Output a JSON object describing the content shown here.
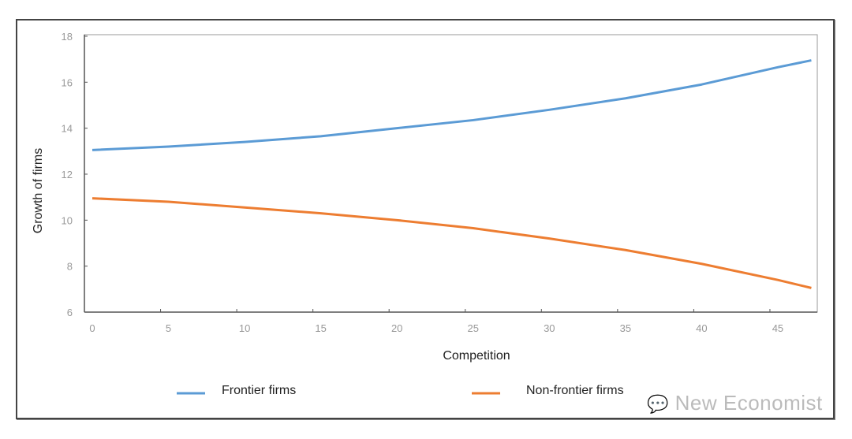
{
  "chart_data": {
    "type": "line",
    "title": "",
    "xlabel": "Competition",
    "ylabel": "Growth of firms",
    "xlim": [
      -0.5,
      48.5
    ],
    "ylim": [
      6,
      18
    ],
    "xticks": [
      0,
      5,
      10,
      15,
      20,
      25,
      30,
      35,
      40,
      45
    ],
    "yticks": [
      6,
      8,
      10,
      12,
      14,
      16,
      18
    ],
    "grid": false,
    "legend_position": "bottom",
    "x": [
      0,
      5,
      10,
      15,
      20,
      25,
      30,
      35,
      40,
      45,
      47.2
    ],
    "series": [
      {
        "name": "Frontier firms",
        "color": "#5b9bd5",
        "values": [
          13.05,
          13.2,
          13.4,
          13.65,
          14.0,
          14.35,
          14.8,
          15.3,
          15.9,
          16.65,
          16.95
        ]
      },
      {
        "name": "Non-frontier firms",
        "color": "#ed7d31",
        "values": [
          10.95,
          10.8,
          10.55,
          10.3,
          10.0,
          9.65,
          9.2,
          8.7,
          8.1,
          7.4,
          7.05
        ]
      }
    ]
  },
  "watermark": "New Economist"
}
